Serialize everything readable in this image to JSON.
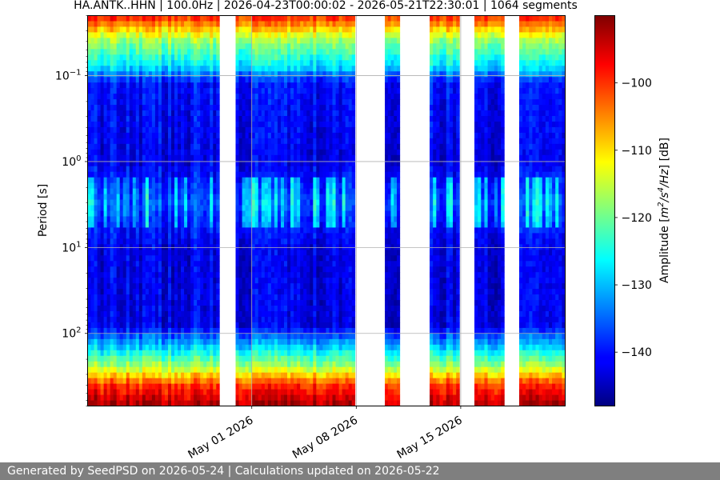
{
  "chart_data": {
    "type": "heatmap",
    "title": "HA.ANTK..HHN | 100.0Hz | 2026-04-23T00:00:02 - 2026-05-21T22:30:01 | 1064 segments",
    "xlabel": "",
    "ylabel": "Period [s]",
    "x_range": [
      "2026-04-20",
      "2026-05-22"
    ],
    "x_ticks": [
      "2026-05-01",
      "2026-05-08",
      "2026-05-15"
    ],
    "x_tick_labels": [
      "May 01 2026",
      "May 08 2026",
      "May 15 2026"
    ],
    "y_scale": "log",
    "y_inverted": true,
    "y_range": [
      0.02,
      700
    ],
    "y_ticks": [
      0.1,
      1,
      10,
      100
    ],
    "y_tick_labels": [
      {
        "base": "10",
        "exp": "−1"
      },
      {
        "base": "10",
        "exp": "0"
      },
      {
        "base": "10",
        "exp": "1"
      },
      {
        "base": "10",
        "exp": "2"
      }
    ],
    "grid": true,
    "colormap": "jet",
    "colorbar": {
      "label_prefix": "Amplitude [",
      "label_units": [
        "m",
        "2",
        "/s",
        "4",
        "/Hz"
      ],
      "label_suffix": "] [dB]",
      "range": [
        -148,
        -90
      ],
      "ticks": [
        -100,
        -110,
        -120,
        -130,
        -140
      ],
      "tick_labels": [
        "−100",
        "−110",
        "−120",
        "−130",
        "−140"
      ]
    },
    "data_segments": [
      [
        "2026-04-20",
        "2026-04-28T20:00"
      ],
      [
        "2026-04-29T22:00",
        "2026-05-07T22:00"
      ],
      [
        "2026-05-09T22:00",
        "2026-05-10T22:00"
      ],
      [
        "2026-05-12T22:00",
        "2026-05-14T22:00"
      ],
      [
        "2026-05-15T22:00",
        "2026-05-17T22:00"
      ],
      [
        "2026-05-18T22:00",
        "2026-05-22"
      ]
    ],
    "mean_profile": [
      {
        "period": 0.02,
        "db": -98
      },
      {
        "period": 0.04,
        "db": -118
      },
      {
        "period": 0.08,
        "db": -128
      },
      {
        "period": 0.12,
        "db": -140
      },
      {
        "period": 1,
        "db": -142
      },
      {
        "period": 3,
        "db": -136
      },
      {
        "period": 10,
        "db": -142
      },
      {
        "period": 80,
        "db": -142
      },
      {
        "period": 150,
        "db": -128
      },
      {
        "period": 250,
        "db": -116
      },
      {
        "period": 400,
        "db": -100
      },
      {
        "period": 700,
        "db": -92
      }
    ]
  },
  "footer": {
    "text": "Generated by SeedPSD on 2026-05-24 | Calculations updated on 2026-05-22"
  }
}
